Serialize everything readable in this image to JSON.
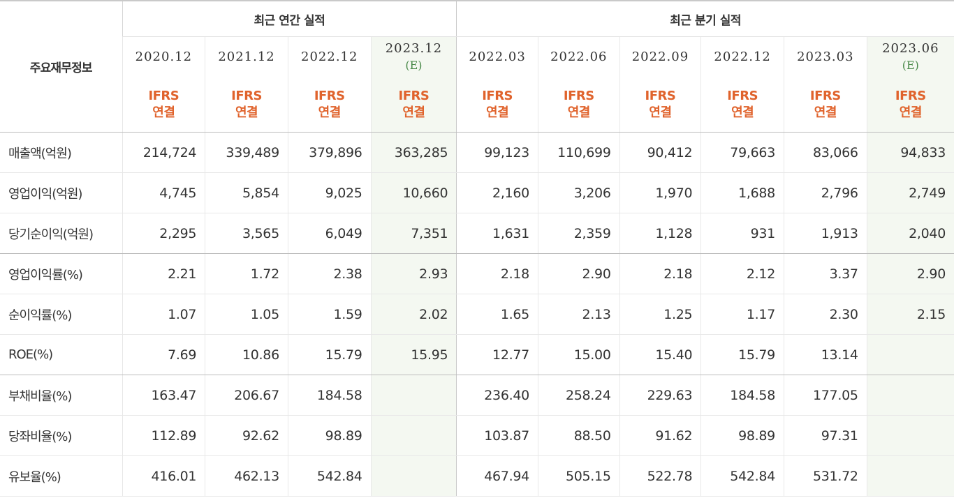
{
  "table": {
    "row_header": "주요재무정보",
    "groups": {
      "annual": "최근 연간 실적",
      "quarterly": "최근 분기 실적"
    },
    "periods": [
      {
        "date": "2020.12",
        "est": "",
        "type": "IFRS",
        "sub": "연결"
      },
      {
        "date": "2021.12",
        "est": "",
        "type": "IFRS",
        "sub": "연결"
      },
      {
        "date": "2022.12",
        "est": "",
        "type": "IFRS",
        "sub": "연결"
      },
      {
        "date": "2023.12",
        "est": "(E)",
        "type": "IFRS",
        "sub": "연결"
      },
      {
        "date": "2022.03",
        "est": "",
        "type": "IFRS",
        "sub": "연결"
      },
      {
        "date": "2022.06",
        "est": "",
        "type": "IFRS",
        "sub": "연결"
      },
      {
        "date": "2022.09",
        "est": "",
        "type": "IFRS",
        "sub": "연결"
      },
      {
        "date": "2022.12",
        "est": "",
        "type": "IFRS",
        "sub": "연결"
      },
      {
        "date": "2023.03",
        "est": "",
        "type": "IFRS",
        "sub": "연결"
      },
      {
        "date": "2023.06",
        "est": "(E)",
        "type": "IFRS",
        "sub": "연결"
      }
    ],
    "rows": [
      {
        "label": "매출액(억원)",
        "values": [
          "214,724",
          "339,489",
          "379,896",
          "363,285",
          "99,123",
          "110,699",
          "90,412",
          "79,663",
          "83,066",
          "94,833"
        ]
      },
      {
        "label": "영업이익(억원)",
        "values": [
          "4,745",
          "5,854",
          "9,025",
          "10,660",
          "2,160",
          "3,206",
          "1,970",
          "1,688",
          "2,796",
          "2,749"
        ]
      },
      {
        "label": "당기순이익(억원)",
        "values": [
          "2,295",
          "3,565",
          "6,049",
          "7,351",
          "1,631",
          "2,359",
          "1,128",
          "931",
          "1,913",
          "2,040"
        ]
      },
      {
        "label": "영업이익률(%)",
        "values": [
          "2.21",
          "1.72",
          "2.38",
          "2.93",
          "2.18",
          "2.90",
          "2.18",
          "2.12",
          "3.37",
          "2.90"
        ]
      },
      {
        "label": "순이익률(%)",
        "values": [
          "1.07",
          "1.05",
          "1.59",
          "2.02",
          "1.65",
          "2.13",
          "1.25",
          "1.17",
          "2.30",
          "2.15"
        ]
      },
      {
        "label": "ROE(%)",
        "values": [
          "7.69",
          "10.86",
          "15.79",
          "15.95",
          "12.77",
          "15.00",
          "15.40",
          "15.79",
          "13.14",
          ""
        ]
      },
      {
        "label": "부채비율(%)",
        "values": [
          "163.47",
          "206.67",
          "184.58",
          "",
          "236.40",
          "258.24",
          "229.63",
          "184.58",
          "177.05",
          ""
        ]
      },
      {
        "label": "당좌비율(%)",
        "values": [
          "112.89",
          "92.62",
          "98.89",
          "",
          "103.87",
          "88.50",
          "91.62",
          "98.89",
          "97.31",
          ""
        ]
      },
      {
        "label": "유보율(%)",
        "values": [
          "416.01",
          "462.13",
          "542.84",
          "",
          "467.94",
          "505.15",
          "522.78",
          "542.84",
          "531.72",
          ""
        ]
      }
    ]
  }
}
